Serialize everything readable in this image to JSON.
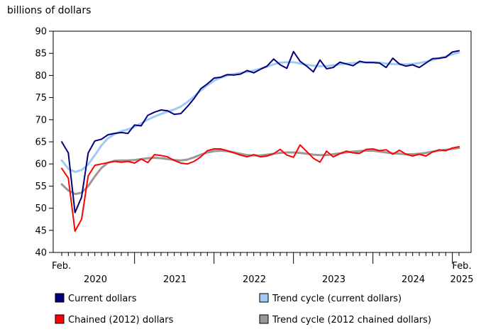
{
  "chart_data": {
    "type": "line",
    "unit_label": "billions of dollars",
    "ylim": [
      40,
      90
    ],
    "y_ticks": [
      "40",
      "45",
      "50",
      "55",
      "60",
      "65",
      "70",
      "75",
      "80",
      "85",
      "90"
    ],
    "x_start": "Feb. 2020",
    "x_end": "Feb. 2025",
    "x_labels": {
      "start_month": "Feb.",
      "end_month": "Feb.",
      "years": [
        "2020",
        "2021",
        "2022",
        "2023",
        "2024",
        "2025"
      ]
    },
    "grid": false,
    "legend_position": "bottom",
    "series": [
      {
        "name": "Current dollars",
        "color": "#00007f",
        "values": [
          65.0,
          62.5,
          49.0,
          52.5,
          62.5,
          65.2,
          65.6,
          66.6,
          66.9,
          67.1,
          66.9,
          68.8,
          68.6,
          71.0,
          71.7,
          72.2,
          72.0,
          71.2,
          71.4,
          73.0,
          74.8,
          77.0,
          78.1,
          79.4,
          79.6,
          80.2,
          80.1,
          80.3,
          81.1,
          80.6,
          81.4,
          82.1,
          83.7,
          82.4,
          81.6,
          85.4,
          83.2,
          82.1,
          80.8,
          83.5,
          81.5,
          81.8,
          83.0,
          82.6,
          82.2,
          83.2,
          82.9,
          82.9,
          82.8,
          81.8,
          83.9,
          82.6,
          82.1,
          82.4,
          81.8,
          82.8,
          83.8,
          83.9,
          84.1,
          85.3,
          85.6
        ]
      },
      {
        "name": "Trend cycle (current dollars)",
        "color": "#9fcbf2",
        "values": [
          60.8,
          58.9,
          58.2,
          58.6,
          59.9,
          62.0,
          64.2,
          65.8,
          66.8,
          67.4,
          67.8,
          68.4,
          69.2,
          70.0,
          70.7,
          71.3,
          71.8,
          72.3,
          73.0,
          74.0,
          75.3,
          76.6,
          77.8,
          78.8,
          79.5,
          80.0,
          80.3,
          80.6,
          80.8,
          81.1,
          81.5,
          82.0,
          82.5,
          82.9,
          83.0,
          83.0,
          82.7,
          82.4,
          82.2,
          82.1,
          82.1,
          82.3,
          82.5,
          82.7,
          82.8,
          82.9,
          83.0,
          83.0,
          82.9,
          82.7,
          82.6,
          82.5,
          82.5,
          82.6,
          82.8,
          83.1,
          83.5,
          83.9,
          84.3,
          84.8,
          85.2
        ]
      },
      {
        "name": "Chained (2012) dollars",
        "color": "#ff0000",
        "values": [
          59.0,
          56.8,
          44.8,
          47.5,
          57.3,
          59.7,
          60.0,
          60.3,
          60.6,
          60.4,
          60.6,
          60.2,
          61.1,
          60.3,
          62.1,
          61.9,
          61.6,
          60.8,
          60.2,
          60.0,
          60.6,
          61.6,
          63.0,
          63.4,
          63.4,
          63.0,
          62.5,
          62.0,
          61.6,
          62.1,
          61.6,
          61.8,
          62.3,
          63.3,
          62.0,
          61.5,
          64.3,
          62.8,
          61.3,
          60.4,
          62.9,
          61.6,
          62.3,
          62.9,
          62.5,
          62.4,
          63.3,
          63.4,
          63.0,
          63.2,
          62.2,
          63.1,
          62.2,
          61.8,
          62.2,
          61.8,
          62.7,
          63.2,
          63.0,
          63.6,
          63.9
        ]
      },
      {
        "name": "Trend cycle (2012 chained dollars)",
        "color": "#999999",
        "values": [
          55.4,
          54.0,
          53.2,
          53.5,
          55.0,
          57.2,
          59.1,
          60.3,
          60.7,
          60.8,
          60.8,
          60.9,
          61.1,
          61.3,
          61.4,
          61.3,
          61.1,
          60.9,
          60.8,
          61.0,
          61.5,
          62.1,
          62.6,
          62.9,
          63.0,
          62.9,
          62.6,
          62.3,
          62.0,
          61.9,
          61.9,
          62.1,
          62.3,
          62.5,
          62.6,
          62.6,
          62.5,
          62.3,
          62.1,
          62.0,
          62.0,
          62.2,
          62.4,
          62.6,
          62.8,
          62.9,
          63.0,
          63.0,
          62.8,
          62.6,
          62.4,
          62.3,
          62.2,
          62.2,
          62.3,
          62.5,
          62.8,
          63.0,
          63.2,
          63.4,
          63.6
        ]
      }
    ]
  }
}
